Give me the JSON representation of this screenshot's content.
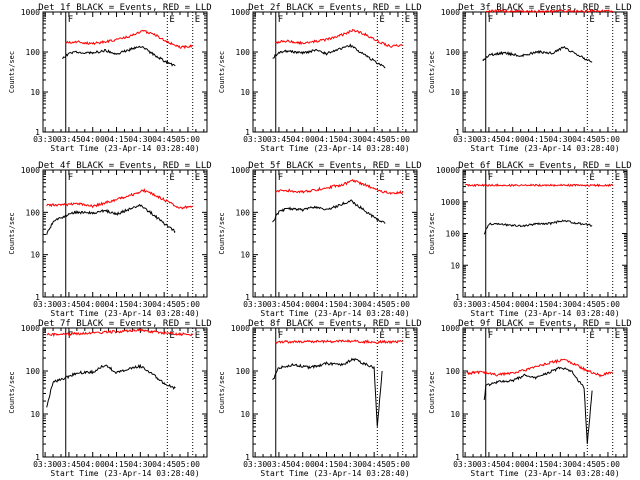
{
  "colors": {
    "background": "#ffffff",
    "axes": "#000000",
    "events": "#000000",
    "lld": "#ff0000"
  },
  "chart_data": [
    {
      "type": "line",
      "title": "Det 1f BLACK = Events, RED = LLD",
      "xlabel": "Start Time (23-Apr-14 03:28:40)",
      "ylabel": "Counts/sec",
      "yscale": "log",
      "ylim": [
        1,
        1000
      ],
      "x_ticks": [
        "03:30",
        "03:45",
        "04:00",
        "04:15",
        "04:30",
        "04:45",
        "05:00"
      ],
      "y_ticks": [
        "1",
        "10",
        "100",
        "1000"
      ],
      "markers": [
        {
          "label": "F",
          "x": "03:43",
          "style": "solid"
        },
        {
          "label": "E",
          "x": "04:47",
          "style": "dotted"
        },
        {
          "label": "E",
          "x": "05:03",
          "style": "dotted"
        }
      ],
      "series": [
        {
          "name": "LLD",
          "color": "#ff0000",
          "x": [
            "03:43",
            "03:50",
            "04:00",
            "04:10",
            "04:15",
            "04:25",
            "04:32",
            "04:40",
            "04:47",
            "04:55",
            "05:03"
          ],
          "y": [
            170,
            180,
            160,
            185,
            200,
            260,
            340,
            260,
            180,
            130,
            140
          ]
        },
        {
          "name": "Events",
          "color": "#000000",
          "x": [
            "03:41",
            "03:45",
            "03:50",
            "04:00",
            "04:08",
            "04:15",
            "04:22",
            "04:30",
            "04:37",
            "04:45",
            "04:52"
          ],
          "y": [
            70,
            90,
            100,
            95,
            110,
            90,
            110,
            140,
            95,
            60,
            45
          ]
        }
      ]
    },
    {
      "type": "line",
      "title": "Det 2f BLACK = Events, RED = LLD",
      "xlabel": "Start Time (23-Apr-14 03:28:40)",
      "ylabel": "Counts/sec",
      "yscale": "log",
      "ylim": [
        1,
        1000
      ],
      "x_ticks": [
        "03:30",
        "03:45",
        "04:00",
        "04:15",
        "04:30",
        "04:45",
        "05:00"
      ],
      "y_ticks": [
        "1",
        "10",
        "100",
        "1000"
      ],
      "markers": [
        {
          "label": "F",
          "x": "03:43",
          "style": "solid"
        },
        {
          "label": "E",
          "x": "04:47",
          "style": "dotted"
        },
        {
          "label": "E",
          "x": "05:03",
          "style": "dotted"
        }
      ],
      "series": [
        {
          "name": "LLD",
          "color": "#ff0000",
          "x": [
            "03:43",
            "03:50",
            "04:00",
            "04:10",
            "04:15",
            "04:25",
            "04:32",
            "04:40",
            "04:47",
            "04:55",
            "05:03"
          ],
          "y": [
            175,
            190,
            165,
            190,
            205,
            270,
            350,
            270,
            185,
            140,
            150
          ]
        },
        {
          "name": "Events",
          "color": "#000000",
          "x": [
            "03:41",
            "03:45",
            "03:50",
            "04:00",
            "04:08",
            "04:15",
            "04:22",
            "04:30",
            "04:37",
            "04:45",
            "04:52"
          ],
          "y": [
            70,
            95,
            105,
            95,
            110,
            90,
            115,
            145,
            95,
            60,
            40
          ]
        }
      ]
    },
    {
      "type": "line",
      "title": "Det 3f BLACK = Events, RED = LLD",
      "xlabel": "Start Time (23-Apr-14 03:28:40)",
      "ylabel": "Counts/sec",
      "yscale": "log",
      "ylim": [
        1,
        1000
      ],
      "x_ticks": [
        "03:30",
        "03:45",
        "04:00",
        "04:15",
        "04:30",
        "04:45",
        "05:00"
      ],
      "y_ticks": [
        "1",
        "10",
        "100",
        "1000"
      ],
      "markers": [
        {
          "label": "F",
          "x": "03:43",
          "style": "solid"
        },
        {
          "label": "E",
          "x": "04:47",
          "style": "dotted"
        },
        {
          "label": "E",
          "x": "05:03",
          "style": "dotted"
        }
      ],
      "series": [
        {
          "name": "LLD",
          "color": "#ff0000",
          "x": [
            "03:43",
            "04:00",
            "04:15",
            "04:30",
            "04:45",
            "05:03"
          ],
          "y": [
            1050,
            1060,
            1040,
            1070,
            1050,
            1060
          ]
        },
        {
          "name": "Events",
          "color": "#000000",
          "x": [
            "03:41",
            "03:45",
            "03:55",
            "04:05",
            "04:15",
            "04:25",
            "04:32",
            "04:40",
            "04:50"
          ],
          "y": [
            60,
            85,
            95,
            80,
            100,
            95,
            130,
            90,
            55
          ]
        }
      ]
    },
    {
      "type": "line",
      "title": "Det 4f BLACK = Events, RED = LLD",
      "xlabel": "Start Time (23-Apr-14 03:28:40)",
      "ylabel": "Counts/sec",
      "yscale": "log",
      "ylim": [
        1,
        1000
      ],
      "x_ticks": [
        "03:30",
        "03:45",
        "04:00",
        "04:15",
        "04:30",
        "04:45",
        "05:00"
      ],
      "y_ticks": [
        "1",
        "10",
        "100",
        "1000"
      ],
      "markers": [
        {
          "label": "F",
          "x": "03:43",
          "style": "solid"
        },
        {
          "label": "E",
          "x": "04:47",
          "style": "dotted"
        },
        {
          "label": "E",
          "x": "05:03",
          "style": "dotted"
        }
      ],
      "series": [
        {
          "name": "LLD",
          "color": "#ff0000",
          "x": [
            "03:31",
            "03:43",
            "03:50",
            "04:00",
            "04:10",
            "04:15",
            "04:25",
            "04:32",
            "04:40",
            "04:47",
            "04:55",
            "05:03"
          ],
          "y": [
            150,
            150,
            160,
            140,
            175,
            200,
            260,
            330,
            250,
            180,
            125,
            140
          ]
        },
        {
          "name": "Events",
          "color": "#000000",
          "x": [
            "03:31",
            "03:35",
            "03:45",
            "03:50",
            "04:00",
            "04:08",
            "04:15",
            "04:22",
            "04:30",
            "04:37",
            "04:45",
            "04:52"
          ],
          "y": [
            30,
            60,
            90,
            100,
            95,
            110,
            90,
            115,
            145,
            95,
            55,
            35
          ]
        }
      ]
    },
    {
      "type": "line",
      "title": "Det 5f BLACK = Events, RED = LLD",
      "xlabel": "Start Time (23-Apr-14 03:28:40)",
      "ylabel": "Counts/sec",
      "yscale": "log",
      "ylim": [
        1,
        1000
      ],
      "x_ticks": [
        "03:30",
        "03:45",
        "04:00",
        "04:15",
        "04:30",
        "04:45",
        "05:00"
      ],
      "y_ticks": [
        "1",
        "10",
        "100",
        "1000"
      ],
      "markers": [
        {
          "label": "F",
          "x": "03:43",
          "style": "solid"
        },
        {
          "label": "E",
          "x": "04:47",
          "style": "dotted"
        },
        {
          "label": "E",
          "x": "05:03",
          "style": "dotted"
        }
      ],
      "series": [
        {
          "name": "LLD",
          "color": "#ff0000",
          "x": [
            "03:43",
            "03:50",
            "04:00",
            "04:10",
            "04:15",
            "04:25",
            "04:32",
            "04:40",
            "04:47",
            "04:55",
            "05:03"
          ],
          "y": [
            310,
            330,
            300,
            350,
            380,
            450,
            560,
            440,
            330,
            280,
            300
          ]
        },
        {
          "name": "Events",
          "color": "#000000",
          "x": [
            "03:41",
            "03:45",
            "03:50",
            "04:00",
            "04:08",
            "04:15",
            "04:22",
            "04:30",
            "04:37",
            "04:45",
            "04:52"
          ],
          "y": [
            60,
            100,
            125,
            115,
            135,
            115,
            140,
            190,
            125,
            75,
            55
          ]
        }
      ]
    },
    {
      "type": "line",
      "title": "Det 6f BLACK = Events, RED = LLD",
      "xlabel": "Start Time (23-Apr-14 03:28:40)",
      "ylabel": "Counts/sec",
      "yscale": "log",
      "ylim": [
        1,
        10000
      ],
      "x_ticks": [
        "03:30",
        "03:45",
        "04:00",
        "04:15",
        "04:30",
        "04:45",
        "05:00"
      ],
      "y_ticks": [
        "1",
        "10",
        "100",
        "1000",
        "10000"
      ],
      "markers": [
        {
          "label": "F",
          "x": "03:43",
          "style": "solid"
        },
        {
          "label": "E",
          "x": "04:47",
          "style": "dotted"
        },
        {
          "label": "E",
          "x": "05:03",
          "style": "dotted"
        }
      ],
      "series": [
        {
          "name": "LLD",
          "color": "#ff0000",
          "x": [
            "03:30",
            "04:00",
            "04:30",
            "05:03"
          ],
          "y": [
            3300,
            3300,
            3300,
            3300
          ]
        },
        {
          "name": "Events",
          "color": "#000000",
          "x": [
            "03:42",
            "03:45",
            "03:55",
            "04:05",
            "04:15",
            "04:25",
            "04:32",
            "04:40",
            "04:50"
          ],
          "y": [
            100,
            200,
            190,
            170,
            200,
            210,
            260,
            210,
            180
          ]
        }
      ]
    },
    {
      "type": "line",
      "title": "Det 7f BLACK = Events, RED = LLD",
      "xlabel": "Start Time (23-Apr-14 03:28:40)",
      "ylabel": "Counts/sec",
      "yscale": "log",
      "ylim": [
        1,
        1000
      ],
      "x_ticks": [
        "03:30",
        "03:45",
        "04:00",
        "04:15",
        "04:30",
        "04:45",
        "05:00"
      ],
      "y_ticks": [
        "1",
        "10",
        "100",
        "1000"
      ],
      "markers": [
        {
          "label": "F",
          "x": "03:43",
          "style": "solid"
        },
        {
          "label": "E",
          "x": "04:47",
          "style": "dotted"
        },
        {
          "label": "E",
          "x": "05:03",
          "style": "dotted"
        }
      ],
      "series": [
        {
          "name": "LLD",
          "color": "#ff0000",
          "x": [
            "03:31",
            "03:43",
            "04:00",
            "04:15",
            "04:30",
            "04:45",
            "05:03"
          ],
          "y": [
            700,
            720,
            780,
            820,
            900,
            760,
            700
          ]
        },
        {
          "name": "Events",
          "color": "#000000",
          "x": [
            "03:31",
            "03:35",
            "03:45",
            "03:50",
            "04:00",
            "04:08",
            "04:15",
            "04:22",
            "04:30",
            "04:37",
            "04:45",
            "04:52"
          ],
          "y": [
            15,
            55,
            75,
            90,
            95,
            140,
            90,
            110,
            130,
            90,
            50,
            40
          ]
        }
      ]
    },
    {
      "type": "line",
      "title": "Det 8f BLACK = Events, RED = LLD",
      "xlabel": "Start Time (23-Apr-14 03:28:40)",
      "ylabel": "Counts/sec",
      "yscale": "log",
      "ylim": [
        1,
        1000
      ],
      "x_ticks": [
        "03:30",
        "03:45",
        "04:00",
        "04:15",
        "04:30",
        "04:45",
        "05:00"
      ],
      "y_ticks": [
        "1",
        "10",
        "100",
        "1000"
      ],
      "markers": [
        {
          "label": "F",
          "x": "03:43",
          "style": "solid"
        },
        {
          "label": "E",
          "x": "04:47",
          "style": "dotted"
        },
        {
          "label": "E",
          "x": "05:03",
          "style": "dotted"
        }
      ],
      "series": [
        {
          "name": "LLD",
          "color": "#ff0000",
          "x": [
            "03:43",
            "04:00",
            "04:15",
            "04:30",
            "04:45",
            "05:03"
          ],
          "y": [
            470,
            480,
            490,
            500,
            470,
            480
          ]
        },
        {
          "name": "Events",
          "color": "#000000",
          "x": [
            "03:41",
            "03:45",
            "03:55",
            "04:05",
            "04:15",
            "04:25",
            "04:32",
            "04:40",
            "04:45",
            "04:47",
            "04:50"
          ],
          "y": [
            60,
            120,
            140,
            120,
            150,
            140,
            190,
            140,
            120,
            5,
            100
          ]
        }
      ]
    },
    {
      "type": "line",
      "title": "Det 9f BLACK = Events, RED = LLD",
      "xlabel": "Start Time (23-Apr-14 03:28:40)",
      "ylabel": "Counts/sec",
      "yscale": "log",
      "ylim": [
        1,
        1000
      ],
      "x_ticks": [
        "03:30",
        "03:45",
        "04:00",
        "04:15",
        "04:30",
        "04:45",
        "05:00"
      ],
      "y_ticks": [
        "1",
        "10",
        "100",
        "1000"
      ],
      "markers": [
        {
          "label": "F",
          "x": "03:43",
          "style": "solid"
        },
        {
          "label": "E",
          "x": "04:47",
          "style": "dotted"
        },
        {
          "label": "E",
          "x": "05:03",
          "style": "dotted"
        }
      ],
      "series": [
        {
          "name": "LLD",
          "color": "#ff0000",
          "x": [
            "03:31",
            "03:43",
            "03:50",
            "04:00",
            "04:10",
            "04:15",
            "04:25",
            "04:32",
            "04:40",
            "04:47",
            "04:55",
            "05:03"
          ],
          "y": [
            90,
            95,
            80,
            90,
            110,
            130,
            160,
            180,
            140,
            100,
            80,
            95
          ]
        },
        {
          "name": "Events",
          "color": "#000000",
          "x": [
            "03:42",
            "03:43",
            "03:50",
            "04:00",
            "04:08",
            "04:15",
            "04:22",
            "04:30",
            "04:37",
            "04:45",
            "04:47",
            "04:50"
          ],
          "y": [
            20,
            45,
            55,
            60,
            80,
            70,
            90,
            120,
            100,
            40,
            2,
            35
          ]
        }
      ]
    }
  ]
}
